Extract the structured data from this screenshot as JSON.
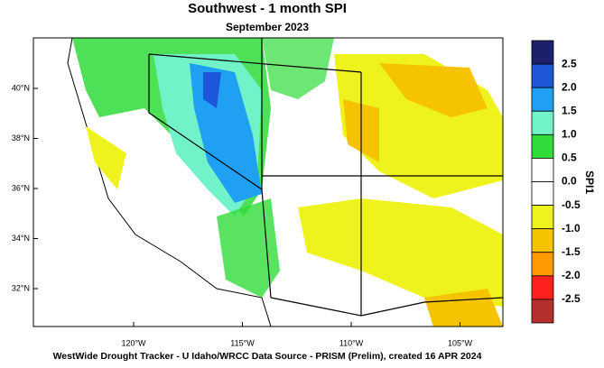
{
  "header": {
    "title": "Southwest - 1 month SPI",
    "subtitle": "September 2023"
  },
  "map": {
    "lat_labels": [
      "40°N",
      "38°N",
      "36°N",
      "34°N",
      "32°N"
    ],
    "lon_labels": [
      "120°W",
      "115°W",
      "110°W",
      "105°W"
    ]
  },
  "colorbar": {
    "title": "SPI1",
    "labels": [
      "2.5",
      "2.0",
      "1.5",
      "1.0",
      "0.5",
      "0.0",
      "-0.5",
      "-1.0",
      "-1.5",
      "-2.0",
      "-2.5"
    ],
    "colors": [
      "#1c1f6b",
      "#1d56d8",
      "#1fa0f2",
      "#72f2c8",
      "#2fdc3a",
      "#ffffff",
      "#ffffff",
      "#eef31e",
      "#f5c300",
      "#ff9b00",
      "#ff2020",
      "#b3302c"
    ]
  },
  "footer": "WestWide Drought Tracker - U Idaho/WRCC  Data Source - PRISM (Prelim), created 16 APR 2024"
}
